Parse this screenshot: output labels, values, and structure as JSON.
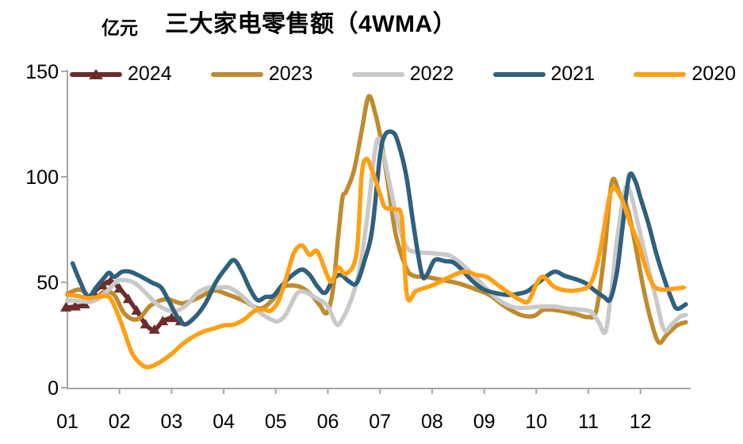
{
  "chart_data": {
    "type": "line",
    "title": "三大家电零售额（4WMA）",
    "unit_label": "亿元",
    "xlabel": "",
    "ylabel": "",
    "legend_position": "top",
    "grid": false,
    "xlim": [
      1,
      13
    ],
    "ylim": [
      0,
      150
    ],
    "colors": {
      "axis": "#a6a6a6",
      "text": "#000000",
      "background": "#ffffff"
    },
    "x_axis": {
      "ticks": [
        {
          "label": "01",
          "m": 1
        },
        {
          "label": "02",
          "m": 2
        },
        {
          "label": "03",
          "m": 3
        },
        {
          "label": "04",
          "m": 4
        },
        {
          "label": "05",
          "m": 5
        },
        {
          "label": "06",
          "m": 6
        },
        {
          "label": "07",
          "m": 7
        },
        {
          "label": "08",
          "m": 8
        },
        {
          "label": "09",
          "m": 9
        },
        {
          "label": "10",
          "m": 10
        },
        {
          "label": "11",
          "m": 11
        },
        {
          "label": "12",
          "m": 12
        }
      ]
    },
    "y_axis": {
      "ticks": [
        {
          "label": "0",
          "v": 0
        },
        {
          "label": "50",
          "v": 50
        },
        {
          "label": "100",
          "v": 100
        },
        {
          "label": "150",
          "v": 150
        }
      ]
    },
    "series": [
      {
        "name": "2024",
        "color": "#6d2b2b",
        "marker": "triangle",
        "points": [
          [
            0.97,
            38
          ],
          [
            1.15,
            38.5
          ],
          [
            1.33,
            39.5
          ],
          [
            1.5,
            45
          ],
          [
            1.67,
            48.5
          ],
          [
            1.83,
            50.5
          ],
          [
            2.0,
            47
          ],
          [
            2.17,
            42
          ],
          [
            2.33,
            36.5
          ],
          [
            2.5,
            30
          ],
          [
            2.67,
            27.5
          ],
          [
            2.83,
            31.5
          ],
          [
            3.0,
            33
          ],
          [
            3.17,
            31.5
          ]
        ]
      },
      {
        "name": "2023",
        "color": "#bf8b2e",
        "marker": "none",
        "points": [
          [
            1.0,
            44.5
          ],
          [
            1.25,
            46.5
          ],
          [
            1.5,
            42
          ],
          [
            1.7,
            45.5
          ],
          [
            1.9,
            44
          ],
          [
            2.1,
            35
          ],
          [
            2.35,
            32.5
          ],
          [
            2.6,
            39
          ],
          [
            2.9,
            42
          ],
          [
            3.2,
            40
          ],
          [
            3.5,
            42.5
          ],
          [
            3.8,
            46
          ],
          [
            4.1,
            44
          ],
          [
            4.4,
            41
          ],
          [
            4.7,
            37.5
          ],
          [
            4.95,
            42
          ],
          [
            5.1,
            47.5
          ],
          [
            5.3,
            48.5
          ],
          [
            5.5,
            47.5
          ],
          [
            5.7,
            43.5
          ],
          [
            5.85,
            39
          ],
          [
            5.98,
            35.5
          ],
          [
            6.1,
            47
          ],
          [
            6.2,
            72
          ],
          [
            6.28,
            90
          ],
          [
            6.35,
            93
          ],
          [
            6.5,
            103
          ],
          [
            6.65,
            122
          ],
          [
            6.78,
            138
          ],
          [
            6.9,
            131
          ],
          [
            7.03,
            116
          ],
          [
            7.15,
            97
          ],
          [
            7.3,
            73
          ],
          [
            7.5,
            57
          ],
          [
            7.65,
            53
          ],
          [
            7.9,
            52.5
          ],
          [
            8.2,
            51
          ],
          [
            8.5,
            49.5
          ],
          [
            8.8,
            47
          ],
          [
            9.1,
            44
          ],
          [
            9.4,
            38.5
          ],
          [
            9.7,
            34.5
          ],
          [
            9.95,
            34
          ],
          [
            10.15,
            37
          ],
          [
            10.45,
            36.5
          ],
          [
            10.75,
            35
          ],
          [
            11.0,
            33.5
          ],
          [
            11.15,
            36.5
          ],
          [
            11.3,
            62
          ],
          [
            11.45,
            97.5
          ],
          [
            11.6,
            92
          ],
          [
            11.75,
            85
          ],
          [
            11.9,
            68
          ],
          [
            12.05,
            48
          ],
          [
            12.2,
            32
          ],
          [
            12.35,
            21.5
          ],
          [
            12.5,
            25
          ],
          [
            12.7,
            29.5
          ],
          [
            12.87,
            31
          ]
        ]
      },
      {
        "name": "2022",
        "color": "#c9c9c9",
        "marker": "none",
        "points": [
          [
            1.0,
            41.5
          ],
          [
            1.25,
            41
          ],
          [
            1.5,
            41
          ],
          [
            1.75,
            45.5
          ],
          [
            1.95,
            50.5
          ],
          [
            2.1,
            51
          ],
          [
            2.3,
            49.5
          ],
          [
            2.5,
            45
          ],
          [
            2.7,
            40
          ],
          [
            2.9,
            37
          ],
          [
            3.1,
            36.5
          ],
          [
            3.3,
            39.5
          ],
          [
            3.5,
            45
          ],
          [
            3.7,
            47.5
          ],
          [
            3.9,
            47.5
          ],
          [
            4.1,
            47.5
          ],
          [
            4.3,
            44.5
          ],
          [
            4.5,
            40
          ],
          [
            4.7,
            35.5
          ],
          [
            4.9,
            32.5
          ],
          [
            5.05,
            31.5
          ],
          [
            5.2,
            35
          ],
          [
            5.4,
            44.5
          ],
          [
            5.55,
            45.5
          ],
          [
            5.7,
            43.5
          ],
          [
            5.85,
            41.5
          ],
          [
            6.0,
            38.5
          ],
          [
            6.17,
            30
          ],
          [
            6.3,
            33.5
          ],
          [
            6.45,
            42
          ],
          [
            6.6,
            55
          ],
          [
            6.75,
            80
          ],
          [
            6.93,
            116
          ],
          [
            7.05,
            112
          ],
          [
            7.2,
            95
          ],
          [
            7.35,
            78
          ],
          [
            7.5,
            67
          ],
          [
            7.65,
            64.5
          ],
          [
            7.85,
            64
          ],
          [
            8.1,
            63.5
          ],
          [
            8.35,
            62.5
          ],
          [
            8.6,
            58
          ],
          [
            8.85,
            52
          ],
          [
            9.1,
            45.5
          ],
          [
            9.35,
            40.5
          ],
          [
            9.6,
            38
          ],
          [
            9.85,
            38
          ],
          [
            10.1,
            38.5
          ],
          [
            10.35,
            38.5
          ],
          [
            10.6,
            37.5
          ],
          [
            10.85,
            37
          ],
          [
            11.05,
            36
          ],
          [
            11.2,
            31
          ],
          [
            11.33,
            26.7
          ],
          [
            11.45,
            48
          ],
          [
            11.55,
            70
          ],
          [
            11.7,
            93.5
          ],
          [
            11.8,
            93
          ],
          [
            11.95,
            78
          ],
          [
            12.1,
            62
          ],
          [
            12.3,
            42
          ],
          [
            12.45,
            27.5
          ],
          [
            12.6,
            30
          ],
          [
            12.75,
            33.5
          ],
          [
            12.87,
            34.5
          ]
        ]
      },
      {
        "name": "2021",
        "color": "#2f607f",
        "marker": "none",
        "points": [
          [
            1.1,
            59
          ],
          [
            1.25,
            50
          ],
          [
            1.4,
            43
          ],
          [
            1.55,
            47.5
          ],
          [
            1.7,
            52
          ],
          [
            1.8,
            54.5
          ],
          [
            1.9,
            52.5
          ],
          [
            2.05,
            55
          ],
          [
            2.2,
            55
          ],
          [
            2.35,
            53.5
          ],
          [
            2.5,
            51.5
          ],
          [
            2.65,
            49.5
          ],
          [
            2.8,
            47.5
          ],
          [
            2.95,
            41
          ],
          [
            3.1,
            34
          ],
          [
            3.25,
            30
          ],
          [
            3.45,
            33.5
          ],
          [
            3.65,
            40
          ],
          [
            3.85,
            50
          ],
          [
            4.05,
            57
          ],
          [
            4.2,
            60.5
          ],
          [
            4.35,
            55
          ],
          [
            4.5,
            47
          ],
          [
            4.65,
            41.5
          ],
          [
            4.8,
            43
          ],
          [
            4.95,
            43.5
          ],
          [
            5.1,
            48
          ],
          [
            5.3,
            53
          ],
          [
            5.5,
            56
          ],
          [
            5.65,
            53.5
          ],
          [
            5.8,
            48
          ],
          [
            5.95,
            45
          ],
          [
            6.1,
            51.5
          ],
          [
            6.25,
            53.5
          ],
          [
            6.4,
            50.5
          ],
          [
            6.55,
            49.5
          ],
          [
            6.7,
            60
          ],
          [
            6.85,
            75
          ],
          [
            7.0,
            110
          ],
          [
            7.1,
            120
          ],
          [
            7.25,
            121
          ],
          [
            7.35,
            116
          ],
          [
            7.5,
            101
          ],
          [
            7.65,
            76
          ],
          [
            7.8,
            54
          ],
          [
            7.9,
            53.5
          ],
          [
            8.05,
            60.5
          ],
          [
            8.25,
            60
          ],
          [
            8.4,
            59.5
          ],
          [
            8.55,
            56.5
          ],
          [
            8.7,
            52.5
          ],
          [
            8.85,
            49
          ],
          [
            9.0,
            46.5
          ],
          [
            9.2,
            45
          ],
          [
            9.45,
            44
          ],
          [
            9.65,
            44.5
          ],
          [
            9.85,
            46
          ],
          [
            10.1,
            51
          ],
          [
            10.35,
            55
          ],
          [
            10.55,
            53
          ],
          [
            10.75,
            51.5
          ],
          [
            10.95,
            49.5
          ],
          [
            11.1,
            46.5
          ],
          [
            11.3,
            43
          ],
          [
            11.42,
            42
          ],
          [
            11.55,
            55
          ],
          [
            11.65,
            75
          ],
          [
            11.78,
            100
          ],
          [
            11.9,
            98
          ],
          [
            12.0,
            90
          ],
          [
            12.15,
            78
          ],
          [
            12.3,
            64
          ],
          [
            12.45,
            52
          ],
          [
            12.6,
            42
          ],
          [
            12.7,
            37.5
          ],
          [
            12.87,
            39.5
          ]
        ]
      },
      {
        "name": "2020",
        "color": "#ffa014",
        "marker": "none",
        "points": [
          [
            1.0,
            44
          ],
          [
            1.2,
            43.5
          ],
          [
            1.4,
            42.5
          ],
          [
            1.6,
            43
          ],
          [
            1.8,
            43
          ],
          [
            1.95,
            36
          ],
          [
            2.1,
            26
          ],
          [
            2.25,
            16
          ],
          [
            2.45,
            10.5
          ],
          [
            2.6,
            10
          ],
          [
            2.8,
            12.5
          ],
          [
            3.0,
            16
          ],
          [
            3.2,
            20.5
          ],
          [
            3.4,
            24
          ],
          [
            3.6,
            26.5
          ],
          [
            3.8,
            28
          ],
          [
            4.0,
            29.5
          ],
          [
            4.2,
            30
          ],
          [
            4.4,
            32.5
          ],
          [
            4.6,
            36.5
          ],
          [
            4.78,
            37
          ],
          [
            4.9,
            36.5
          ],
          [
            5.05,
            41
          ],
          [
            5.2,
            52
          ],
          [
            5.35,
            64
          ],
          [
            5.5,
            67.5
          ],
          [
            5.65,
            63
          ],
          [
            5.8,
            64.5
          ],
          [
            6.0,
            52.5
          ],
          [
            6.08,
            50.5
          ],
          [
            6.2,
            57
          ],
          [
            6.35,
            54
          ],
          [
            6.55,
            63.5
          ],
          [
            6.65,
            101
          ],
          [
            6.74,
            108.5
          ],
          [
            6.85,
            103
          ],
          [
            7.0,
            92
          ],
          [
            7.1,
            85.5
          ],
          [
            7.3,
            84.5
          ],
          [
            7.42,
            80
          ],
          [
            7.52,
            43.5
          ],
          [
            7.7,
            46
          ],
          [
            8.0,
            48.5
          ],
          [
            8.3,
            52
          ],
          [
            8.6,
            55
          ],
          [
            8.85,
            53.5
          ],
          [
            9.05,
            52.5
          ],
          [
            9.3,
            48
          ],
          [
            9.5,
            44.5
          ],
          [
            9.7,
            41.5
          ],
          [
            9.85,
            41
          ],
          [
            10.0,
            49
          ],
          [
            10.1,
            52.5
          ],
          [
            10.2,
            51.5
          ],
          [
            10.35,
            47.8
          ],
          [
            10.6,
            46
          ],
          [
            10.85,
            46.5
          ],
          [
            11.0,
            48
          ],
          [
            11.12,
            54
          ],
          [
            11.25,
            68
          ],
          [
            11.4,
            90
          ],
          [
            11.5,
            94.5
          ],
          [
            11.65,
            89
          ],
          [
            11.8,
            78
          ],
          [
            11.95,
            69
          ],
          [
            12.1,
            57
          ],
          [
            12.25,
            48.5
          ],
          [
            12.4,
            46.5
          ],
          [
            12.6,
            46.8
          ],
          [
            12.83,
            47.5
          ]
        ]
      }
    ]
  }
}
